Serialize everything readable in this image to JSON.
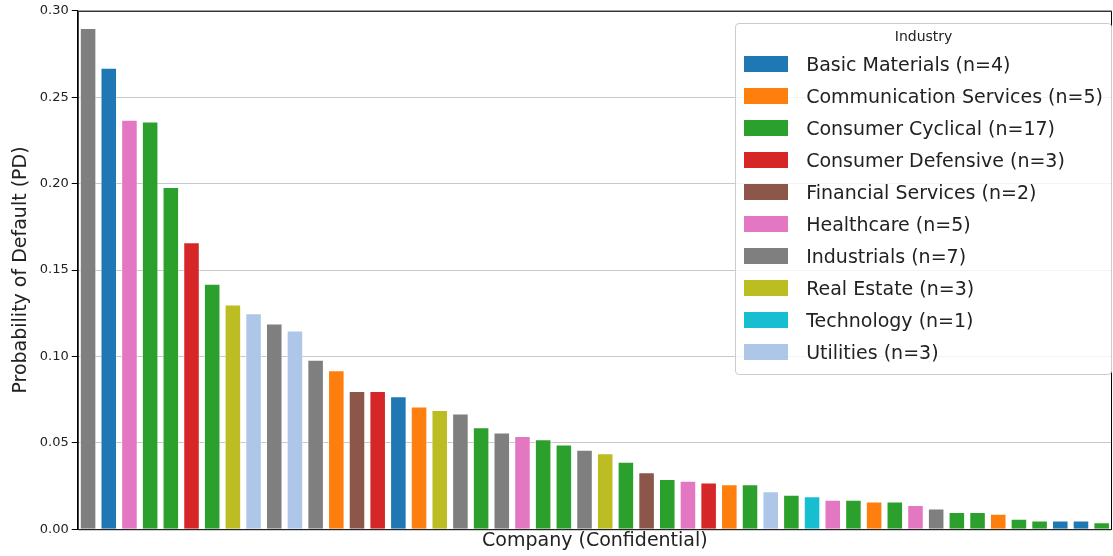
{
  "chart_data": {
    "type": "bar",
    "xlabel": "Company (Confidential)",
    "ylabel": "Probability of Default (PD)",
    "legend_title": "Industry",
    "legend": "top right",
    "grid": "y",
    "tick_labels": "y",
    "categories": [
      null,
      null,
      null,
      null,
      null,
      null,
      null,
      null,
      null,
      null,
      null,
      null,
      null,
      null,
      null,
      null,
      null,
      null,
      null,
      null,
      null,
      null,
      null,
      null,
      null,
      null,
      null,
      null,
      null,
      null,
      null,
      null,
      null,
      null,
      null,
      null,
      null,
      null,
      null,
      null,
      null,
      null,
      null,
      null,
      null,
      null,
      null,
      null,
      null,
      null
    ],
    "ylim": [
      0,
      0.3
    ],
    "yticks": [
      {
        "value": 0,
        "label": "0.00"
      },
      {
        "value": 0.05,
        "label": "0.05"
      },
      {
        "value": 0.1,
        "label": "0.10"
      },
      {
        "value": 0.15,
        "label": "0.15"
      },
      {
        "value": 0.2,
        "label": "0.20"
      },
      {
        "value": 0.25,
        "label": "0.25"
      },
      {
        "value": 0.3,
        "label": "0.30"
      }
    ],
    "series": [
      {
        "name": "Basic Materials (n=4)",
        "color": "#1f77b4",
        "values": [
          null,
          0.267,
          null,
          null,
          null,
          null,
          null,
          null,
          null,
          null,
          null,
          null,
          null,
          null,
          null,
          0.077,
          null,
          null,
          null,
          null,
          null,
          null,
          null,
          null,
          null,
          null,
          null,
          null,
          null,
          null,
          null,
          null,
          null,
          null,
          null,
          null,
          null,
          null,
          null,
          null,
          null,
          null,
          null,
          null,
          null,
          null,
          null,
          0.005,
          0.005,
          null
        ]
      },
      {
        "name": "Communication Services (n=5)",
        "color": "#ff7f0e",
        "values": [
          null,
          null,
          null,
          null,
          null,
          null,
          null,
          null,
          null,
          null,
          null,
          null,
          0.092,
          null,
          null,
          null,
          0.071,
          null,
          null,
          null,
          null,
          null,
          null,
          null,
          null,
          null,
          null,
          null,
          null,
          null,
          null,
          0.026,
          null,
          null,
          null,
          null,
          null,
          null,
          0.016,
          null,
          null,
          null,
          null,
          null,
          0.009,
          null,
          null,
          null,
          null,
          null
        ]
      },
      {
        "name": "Consumer Cyclical (n=17)",
        "color": "#2ca02c",
        "values": [
          null,
          null,
          null,
          0.236,
          0.198,
          null,
          0.142,
          null,
          null,
          null,
          null,
          null,
          null,
          null,
          null,
          null,
          null,
          null,
          null,
          0.059,
          null,
          null,
          0.052,
          0.049,
          null,
          null,
          0.039,
          null,
          0.029,
          null,
          null,
          null,
          0.026,
          null,
          0.02,
          null,
          null,
          0.017,
          null,
          0.016,
          null,
          null,
          0.01,
          0.01,
          null,
          0.006,
          0.005,
          null,
          null,
          0.004
        ]
      },
      {
        "name": "Consumer Defensive (n=3)",
        "color": "#d62728",
        "values": [
          null,
          null,
          null,
          null,
          null,
          0.166,
          null,
          null,
          null,
          null,
          null,
          null,
          null,
          null,
          0.08,
          null,
          null,
          null,
          null,
          null,
          null,
          null,
          null,
          null,
          null,
          null,
          null,
          null,
          null,
          null,
          0.027,
          null,
          null,
          null,
          null,
          null,
          null,
          null,
          null,
          null,
          null,
          null,
          null,
          null,
          null,
          null,
          null,
          null,
          null,
          null
        ]
      },
      {
        "name": "Financial Services (n=2)",
        "color": "#8c564b",
        "values": [
          null,
          null,
          null,
          null,
          null,
          null,
          null,
          null,
          null,
          null,
          null,
          null,
          null,
          0.08,
          null,
          null,
          null,
          null,
          null,
          null,
          null,
          null,
          null,
          null,
          null,
          null,
          null,
          0.033,
          null,
          null,
          null,
          null,
          null,
          null,
          null,
          null,
          null,
          null,
          null,
          null,
          null,
          null,
          null,
          null,
          null,
          null,
          null,
          null,
          null,
          null
        ]
      },
      {
        "name": "Healthcare (n=5)",
        "color": "#e377c2",
        "values": [
          null,
          null,
          0.237,
          null,
          null,
          null,
          null,
          null,
          null,
          null,
          null,
          null,
          null,
          null,
          null,
          null,
          null,
          null,
          null,
          null,
          null,
          0.054,
          null,
          null,
          null,
          null,
          null,
          null,
          null,
          0.028,
          null,
          null,
          null,
          null,
          null,
          null,
          0.017,
          null,
          null,
          null,
          0.014,
          null,
          null,
          null,
          null,
          null,
          null,
          null,
          null,
          null
        ]
      },
      {
        "name": "Industrials (n=7)",
        "color": "#7f7f7f",
        "values": [
          0.29,
          null,
          null,
          null,
          null,
          null,
          null,
          null,
          null,
          0.119,
          null,
          0.098,
          null,
          null,
          null,
          null,
          null,
          null,
          0.067,
          null,
          0.056,
          null,
          null,
          null,
          0.046,
          null,
          null,
          null,
          null,
          null,
          null,
          null,
          null,
          null,
          null,
          null,
          null,
          null,
          null,
          null,
          null,
          0.012,
          null,
          null,
          null,
          null,
          null,
          null,
          null,
          null
        ]
      },
      {
        "name": "Real Estate (n=3)",
        "color": "#bcbd22",
        "values": [
          null,
          null,
          null,
          null,
          null,
          null,
          null,
          0.13,
          null,
          null,
          null,
          null,
          null,
          null,
          null,
          null,
          null,
          0.069,
          null,
          null,
          null,
          null,
          null,
          null,
          null,
          0.044,
          null,
          null,
          null,
          null,
          null,
          null,
          null,
          null,
          null,
          null,
          null,
          null,
          null,
          null,
          null,
          null,
          null,
          null,
          null,
          null,
          null,
          null,
          null,
          null
        ]
      },
      {
        "name": "Technology (n=1)",
        "color": "#17becf",
        "values": [
          null,
          null,
          null,
          null,
          null,
          null,
          null,
          null,
          null,
          null,
          null,
          null,
          null,
          null,
          null,
          null,
          null,
          null,
          null,
          null,
          null,
          null,
          null,
          null,
          null,
          null,
          null,
          null,
          null,
          null,
          null,
          null,
          null,
          null,
          null,
          0.019,
          null,
          null,
          null,
          null,
          null,
          null,
          null,
          null,
          null,
          null,
          null,
          null,
          null,
          null
        ]
      },
      {
        "name": "Utilities (n=3)",
        "color": "#aec7e8",
        "values": [
          null,
          null,
          null,
          null,
          null,
          null,
          null,
          null,
          0.125,
          null,
          0.115,
          null,
          null,
          null,
          null,
          null,
          null,
          null,
          null,
          null,
          null,
          null,
          null,
          null,
          null,
          null,
          null,
          null,
          null,
          null,
          null,
          null,
          null,
          0.022,
          null,
          null,
          null,
          null,
          null,
          null,
          null,
          null,
          null,
          null,
          null,
          null,
          null,
          null,
          null,
          null
        ]
      }
    ]
  }
}
